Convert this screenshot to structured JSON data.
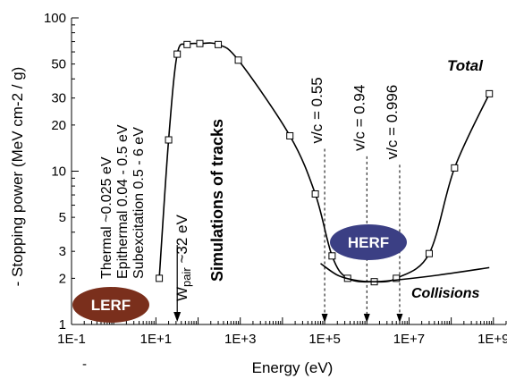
{
  "chart_data": {
    "type": "line",
    "xlabel": "Energy (eV)",
    "ylabel": "- Stopping power (MeV cm-2 / g)",
    "x_scale": "log",
    "y_scale": "log",
    "xlim": [
      0.1,
      2000000000
    ],
    "ylim": [
      1,
      100
    ],
    "x_ticks": [
      "1E-1",
      "1E+1",
      "1E+3",
      "1E+5",
      "1E+7",
      "1E+9"
    ],
    "y_ticks": [
      "1",
      "2",
      "3",
      "5",
      "10",
      "20",
      "30",
      "50",
      "100"
    ],
    "series": [
      {
        "name": "Total",
        "marker": "open-square",
        "x": [
          12,
          20,
          32,
          55,
          110,
          300,
          900,
          15000,
          60000,
          150000,
          350000,
          1500000,
          5000000,
          30000000,
          120000000,
          800000000
        ],
        "y": [
          2.0,
          16,
          58,
          67,
          68,
          67,
          53,
          17,
          7.1,
          2.8,
          2.0,
          1.9,
          2.0,
          2.9,
          10.5,
          32
        ]
      },
      {
        "name": "Collisions",
        "marker": "none",
        "x": [
          80000,
          200000,
          500000,
          1500000,
          5000000,
          50000000,
          800000000
        ],
        "y": [
          2.5,
          2.1,
          1.95,
          1.9,
          1.95,
          2.1,
          2.35
        ]
      }
    ],
    "markers_vertical": [
      {
        "label": "v/c = 0.55",
        "x": 100000,
        "y_top": 14
      },
      {
        "label": "v/c = 0.94",
        "x": 1000000,
        "y_top": 12.5
      },
      {
        "label": "v/c = 0.996",
        "x": 6000000,
        "y_top": 11
      }
    ],
    "annotations": {
      "thermal": "Thermal   ~0.025  eV",
      "epithermal": "Epithermal  0.04 - 0.5 eV",
      "subexcitation": "Subexcitation    0.5 - 6 eV",
      "wpair_main": "W",
      "wpair_sub": "pair",
      "wpair_rest": " ~32 eV",
      "tracks": "Simulations of tracks",
      "total": "Total",
      "collisions": "Collisions",
      "lerf": "LERF",
      "herf": "HERF",
      "stray_dash": "-"
    },
    "colors": {
      "lerf_badge": "#7a2f1c",
      "herf_badge": "#3b3f84",
      "line": "#000000"
    }
  }
}
